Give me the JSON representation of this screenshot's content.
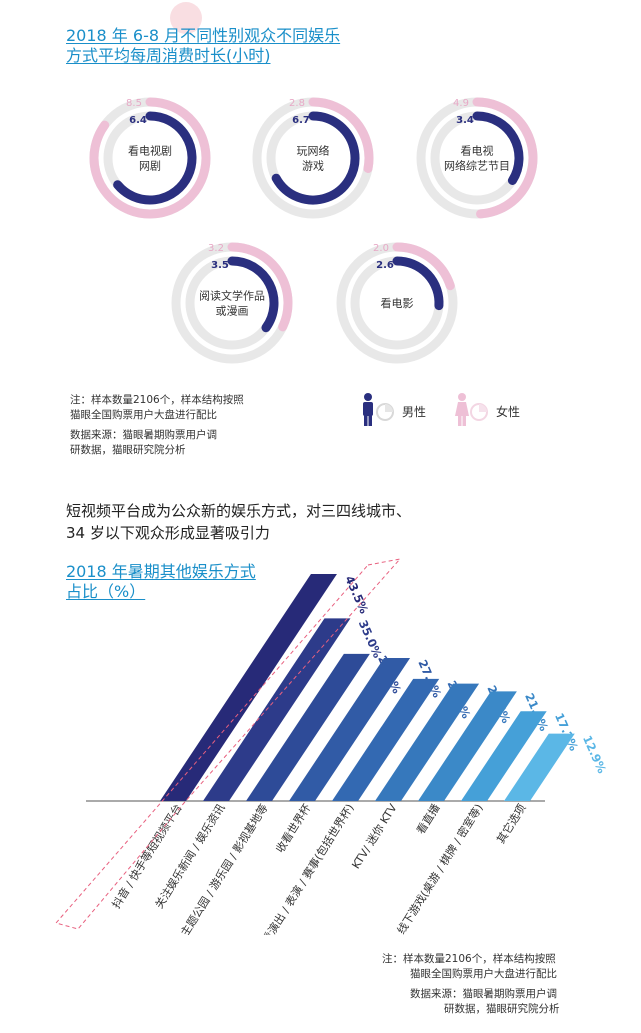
{
  "section1": {
    "title_line1": "2018 年 6-8 月不同性别观众不同娱乐",
    "title_line2": "方式平均每周消费时长(小时)",
    "note_line1": "注：样本数量2106个，样本结构按照",
    "note_line2": "猫眼全国购票用户大盘进行配比",
    "source_line1": "数据来源：猫眼暑期购票用户调",
    "source_line2": "研数据，猫眼研究院分析",
    "legend": {
      "male": "男性",
      "female": "女性",
      "male_icon": "male-person-icon",
      "female_icon": "female-person-icon"
    }
  },
  "section2": {
    "headline_line1": "短视频平台成为公众新的娱乐方式，对三四线城市、",
    "headline_line2": "34 岁以下观众形成显著吸引力",
    "title_line1": "2018 年暑期其他娱乐方式",
    "title_line2": "占比（%）",
    "note_line1": "注：样本数量2106个，样本结构按照",
    "note_line2": "猫眼全国购票用户大盘进行配比",
    "source_line1": "数据来源：猫眼暑期购票用户调",
    "source_line2": "研数据，猫眼研究院分析"
  },
  "colors": {
    "male": "#2a2f7f",
    "female": "#eec0d6",
    "track": "#e8e8e8",
    "title": "#1a8fc9",
    "highlight_border": "#e8607f"
  },
  "chart_data": [
    {
      "type": "donut",
      "max": 10,
      "series": [
        {
          "name": "男性",
          "color": "#2a2f7f"
        },
        {
          "name": "女性",
          "color": "#eec0d6"
        }
      ],
      "items": [
        {
          "label_lines": [
            "看电视剧",
            "网剧"
          ],
          "male": 6.4,
          "female": 8.5
        },
        {
          "label_lines": [
            "玩网络",
            "游戏"
          ],
          "male": 6.7,
          "female": 2.8
        },
        {
          "label_lines": [
            "看电视",
            "网络综艺节目"
          ],
          "male": 3.4,
          "female": 4.9
        },
        {
          "label_lines": [
            "阅读文学作品",
            "或漫画"
          ],
          "male": 3.5,
          "female": 3.2
        },
        {
          "label_lines": [
            "看电影"
          ],
          "male": 2.6,
          "female": 2.0
        }
      ]
    },
    {
      "type": "bar",
      "unit": "%",
      "categories": [
        "抖音 / 快手等短视频平台",
        "关注娱乐新闻 / 娱乐资讯",
        "主题公园 / 游乐园 / 影视基地等",
        "收看世界杯",
        "现场观看演出 / 表演 / 赛事(包括世界杯)",
        "KTV/ 迷你 KTV",
        "看直播",
        "线下游戏(桌游 / 棋牌 / 密室等)",
        "其它选项"
      ],
      "values": [
        43.5,
        35.0,
        28.2,
        27.4,
        23.4,
        22.5,
        21.0,
        17.2,
        12.9
      ],
      "value_labels": [
        "43.5%",
        "35.0%",
        "28.2%",
        "27.4%",
        "23.4%",
        "22.5%",
        "21.0%",
        "17.2%",
        "12.9%"
      ],
      "colors": [
        "#272a78",
        "#2d3b8a",
        "#2e4b98",
        "#315ba6",
        "#3369b2",
        "#3678bc",
        "#3b89c8",
        "#45a0d8",
        "#5bb7e6"
      ]
    }
  ]
}
